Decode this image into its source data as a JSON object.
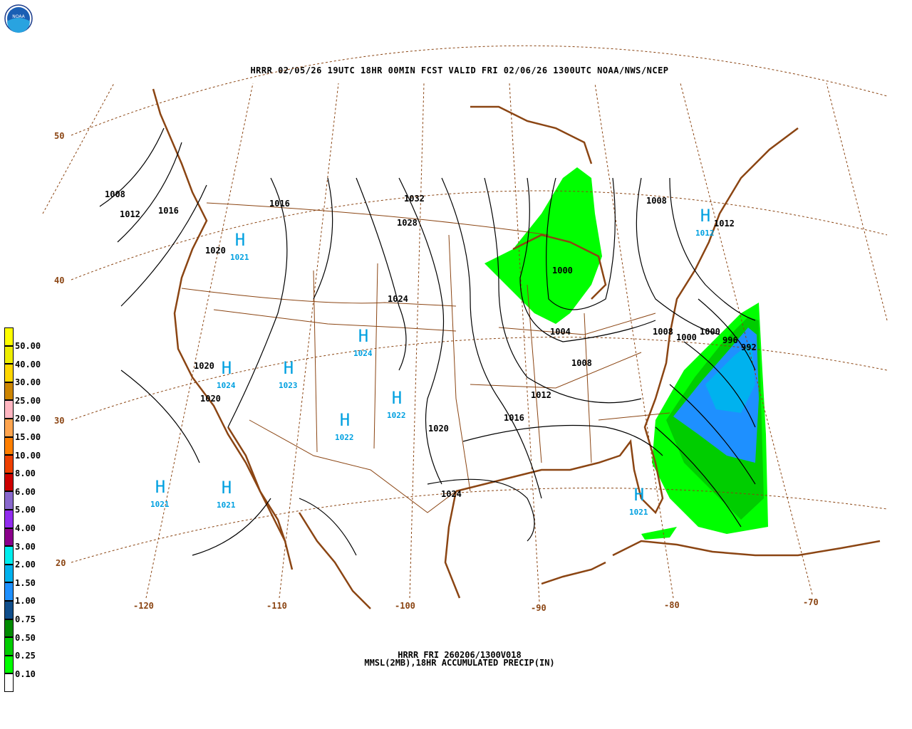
{
  "header": {
    "title": "HRRR 02/05/26 19UTC 18HR 00MIN FCST VALID FRI 02/06/26 1300UTC NOAA/NWS/NCEP",
    "logo_text": "NOAA"
  },
  "footer": {
    "line1": "HRRR FRI 260206/1300V018",
    "line2": "MMSL(2MB),18HR ACCUMULATED PRECIP(IN)"
  },
  "colors": {
    "map_lines": "#8b4513",
    "isobars": "#000000",
    "highs": "#00a0e0"
  },
  "latitude_labels": [
    "50",
    "40",
    "30",
    "20"
  ],
  "longitude_labels": [
    "-120",
    "-110",
    "-100",
    "-90",
    "-80",
    "-70"
  ],
  "isobar_labels": [
    "1008",
    "1012",
    "1016",
    "1016",
    "1032",
    "1028",
    "1008",
    "1012",
    "1020",
    "1000",
    "1024",
    "1004",
    "1008",
    "1008",
    "1000",
    "1000",
    "996",
    "992",
    "1020",
    "1012",
    "1016",
    "1020",
    "1024",
    "1020"
  ],
  "highs": [
    {
      "symbol": "H",
      "value": "1021"
    },
    {
      "symbol": "H",
      "value": "1024"
    },
    {
      "symbol": "H",
      "value": "1024"
    },
    {
      "symbol": "H",
      "value": "1023"
    },
    {
      "symbol": "H",
      "value": "1022"
    },
    {
      "symbol": "H",
      "value": "1022"
    },
    {
      "symbol": "H",
      "value": "1021"
    },
    {
      "symbol": "H",
      "value": "1021"
    },
    {
      "symbol": "H",
      "value": "1021"
    },
    {
      "symbol": "H",
      "value": "1012"
    }
  ],
  "legend": {
    "unit": "IN",
    "bins": [
      {
        "label": "50.00",
        "color": "#ffff00"
      },
      {
        "label": "40.00",
        "color": "#eeee00"
      },
      {
        "label": "30.00",
        "color": "#ffd700"
      },
      {
        "label": "25.00",
        "color": "#cd8500"
      },
      {
        "label": "20.00",
        "color": "#ffb6c1"
      },
      {
        "label": "15.00",
        "color": "#ffa54f"
      },
      {
        "label": "10.00",
        "color": "#ff7f00"
      },
      {
        "label": "8.00",
        "color": "#ee4000"
      },
      {
        "label": "6.00",
        "color": "#cd0000"
      },
      {
        "label": "5.00",
        "color": "#8968cd"
      },
      {
        "label": "4.00",
        "color": "#912cee"
      },
      {
        "label": "3.00",
        "color": "#8b008b"
      },
      {
        "label": "2.00",
        "color": "#00eeee"
      },
      {
        "label": "1.50",
        "color": "#00b2ee"
      },
      {
        "label": "1.00",
        "color": "#1e90ff"
      },
      {
        "label": "0.75",
        "color": "#104e8b"
      },
      {
        "label": "0.50",
        "color": "#008b00"
      },
      {
        "label": "0.25",
        "color": "#00cd00"
      },
      {
        "label": "0.10",
        "color": "#00ff00"
      },
      {
        "label": "",
        "color": "#ffffff"
      }
    ]
  }
}
